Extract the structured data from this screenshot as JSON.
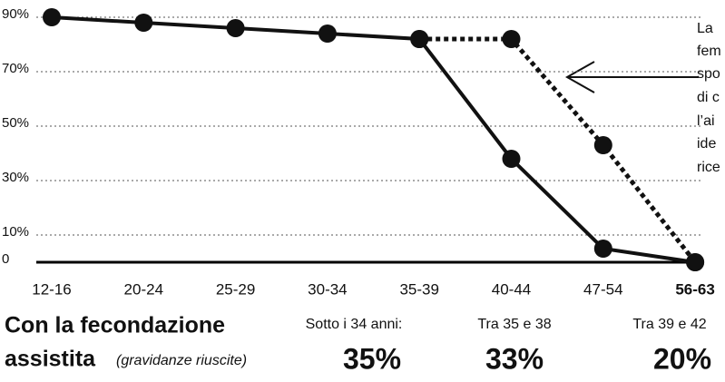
{
  "chart_data": {
    "type": "line",
    "categories": [
      "12-16",
      "20-24",
      "25-29",
      "30-34",
      "35-39",
      "40-44",
      "47-54",
      "56-63"
    ],
    "series": [
      {
        "color": "#111111",
        "style": "solid",
        "values": [
          90,
          88,
          86,
          84,
          82,
          38,
          5,
          0
        ]
      },
      {
        "color": "#111111",
        "style": "dotted",
        "values": [
          null,
          null,
          null,
          null,
          82,
          82,
          43,
          0
        ]
      }
    ],
    "ylim": [
      0,
      90
    ],
    "yticks": [
      0,
      {
        "value": 10,
        "label": "10%"
      },
      {
        "value": 30,
        "label": "30%"
      },
      {
        "value": 50,
        "label": "50%"
      },
      {
        "value": 70,
        "label": "70%"
      },
      {
        "value": 90,
        "label": "90%"
      }
    ],
    "grid": true
  },
  "side_text": [
    "La",
    "fem",
    "spo",
    "di c",
    "l’ai",
    "ide",
    "rice"
  ],
  "footer": {
    "title_1": "Con la fecondazione",
    "title_2": "assistita",
    "note": "(gravidanze riuscite)",
    "groups": [
      {
        "label": "Sotto i 34 anni:",
        "value": "35%"
      },
      {
        "label": "Tra 35 e 38",
        "value": "33%"
      },
      {
        "label": "Tra 39 e 42",
        "value": "20%"
      }
    ]
  }
}
